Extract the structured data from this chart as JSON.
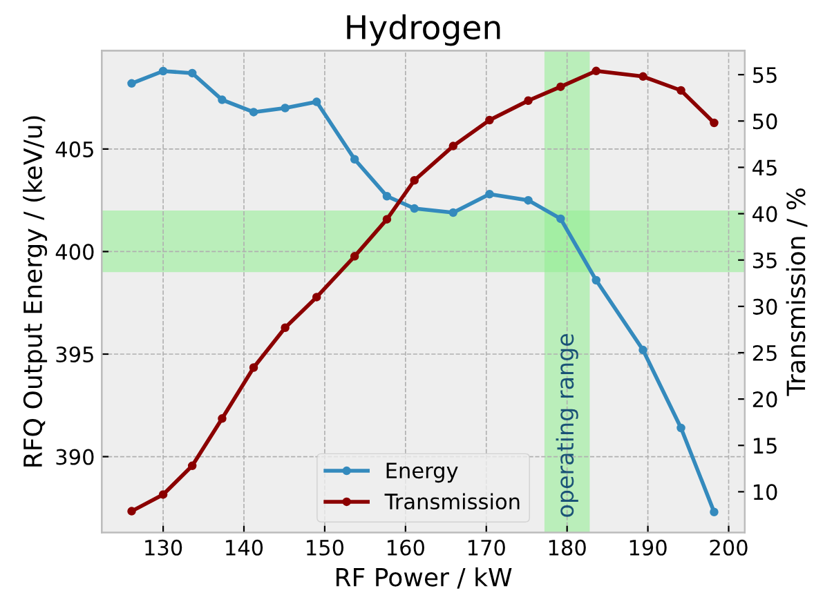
{
  "chart_data": {
    "type": "line",
    "title": "Hydrogen",
    "xlabel": "RF Power / kW",
    "ylabel": "RFQ Output Energy / (keV/u)",
    "y2label": "Transmission / %",
    "x": [
      126.1,
      130,
      133.6,
      137.3,
      141.2,
      145.1,
      149.0,
      153.7,
      157.7,
      161.1,
      165.9,
      170.4,
      175.2,
      179.2,
      183.6,
      189.4,
      194.1,
      198.2
    ],
    "series": [
      {
        "name": "Energy",
        "color": "#348abd",
        "values": [
          408.2,
          408.8,
          408.7,
          407.4,
          406.8,
          407.0,
          407.3,
          404.5,
          402.7,
          402.1,
          401.9,
          402.8,
          402.5,
          401.6,
          398.6,
          395.2,
          391.4,
          387.3
        ]
      },
      {
        "name": "Transmission",
        "color": "#8b0000",
        "axis": "y2",
        "values": [
          7.9,
          9.7,
          12.8,
          17.9,
          23.4,
          27.7,
          31.0,
          35.4,
          39.4,
          43.6,
          47.3,
          50.1,
          52.2,
          53.7,
          55.4,
          54.8,
          53.3,
          49.8
        ]
      }
    ],
    "xlim": [
      122.4,
      202.0
    ],
    "xticks": [
      130,
      140,
      150,
      160,
      170,
      180,
      190,
      200
    ],
    "ylim": [
      386.3,
      409.8
    ],
    "yticks": [
      390,
      395,
      400,
      405
    ],
    "y2lim": [
      5.6,
      57.6
    ],
    "y2ticks": [
      10,
      15,
      20,
      25,
      30,
      35,
      40,
      45,
      50,
      55
    ],
    "bands": [
      {
        "axis": "y",
        "from": 399.0,
        "to": 402.0,
        "color": "#90ee90"
      },
      {
        "axis": "x",
        "from": 177.2,
        "to": 182.8,
        "color": "#90ee90",
        "label": "operating range"
      }
    ],
    "grid": true,
    "legend": "bottom",
    "marker": "circle",
    "line_style": "solid"
  }
}
